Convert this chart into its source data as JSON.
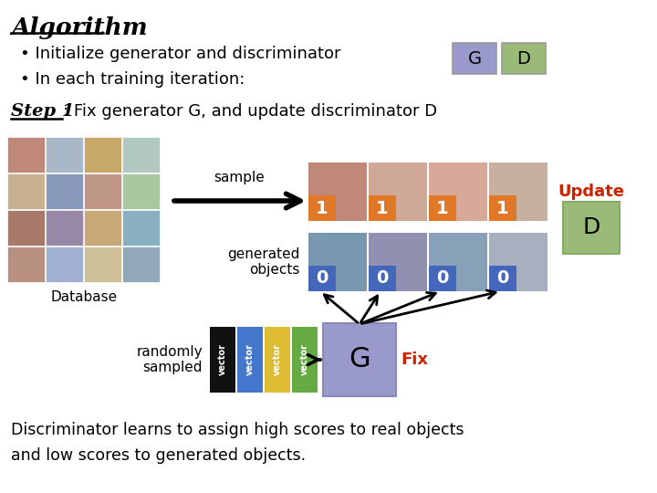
{
  "title": "Algorithm",
  "bullet1": "• Initialize generator and discriminator",
  "bullet2": "• In each training iteration:",
  "step1_text": "Step 1",
  "step1_rest": ": Fix generator G, and update discriminator D",
  "g_color": "#9999cc",
  "d_color": "#99bb77",
  "orange_color": "#e07828",
  "blue_color": "#4466bb",
  "update_color": "#cc2200",
  "fix_color": "#cc2200",
  "db_label": "Database",
  "sample_label": "sample",
  "gen_label": "generated\nobjects",
  "rand_label": "randomly\nsampled",
  "fix_label": "Fix",
  "update_label": "Update",
  "footer1": "Discriminator learns to assign high scores to real objects",
  "footer2": "and low scores to generated objects.",
  "bg_color": "#ffffff",
  "text_color": "#000000",
  "vec_colors": [
    "#111111",
    "#4477cc",
    "#ddbb33",
    "#66aa44"
  ],
  "db_colors": [
    [
      "#c08878",
      "#a8b8c8",
      "#c8a868",
      "#b0c8c0"
    ],
    [
      "#c8b090",
      "#8898b8",
      "#c09888",
      "#a8c8a0"
    ],
    [
      "#a87868",
      "#9888a8",
      "#c8a878",
      "#88b0c0"
    ],
    [
      "#b89080",
      "#a0b0d0",
      "#d0c098",
      "#90a8b8"
    ]
  ],
  "real_img_colors": [
    "#c08878",
    "#d0a898",
    "#d8a898",
    "#c8b0a0"
  ],
  "gen_img_colors": [
    "#7898b0",
    "#9090b0",
    "#88a0b8",
    "#a8b0c0"
  ]
}
